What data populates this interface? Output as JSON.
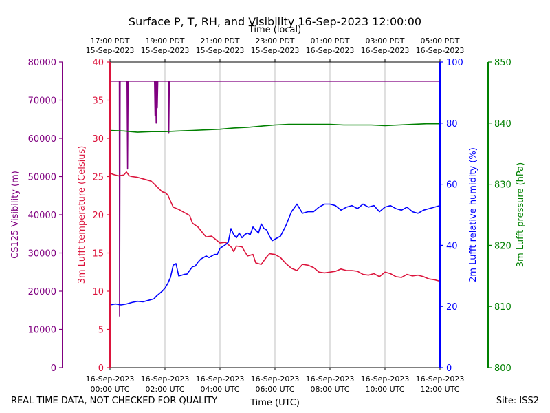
{
  "chart_data": {
    "type": "line",
    "title": "Surface P, T, RH, and Visibility 16-Sep-2023 12:00:00",
    "xlabel": "Time (UTC)",
    "xlabel_top": "Time (local)",
    "x_range": [
      "16-Sep-2023 00:00 UTC",
      "16-Sep-2023 12:00 UTC"
    ],
    "x_ticks_bottom": [
      {
        "hour": 0,
        "line1": "16-Sep-2023",
        "line2": "00:00 UTC"
      },
      {
        "hour": 2,
        "line1": "16-Sep-2023",
        "line2": "02:00 UTC"
      },
      {
        "hour": 4,
        "line1": "16-Sep-2023",
        "line2": "04:00 UTC"
      },
      {
        "hour": 6,
        "line1": "16-Sep-2023",
        "line2": "06:00 UTC"
      },
      {
        "hour": 8,
        "line1": "16-Sep-2023",
        "line2": "08:00 UTC"
      },
      {
        "hour": 10,
        "line1": "16-Sep-2023",
        "line2": "10:00 UTC"
      },
      {
        "hour": 12,
        "line1": "16-Sep-2023",
        "line2": "12:00 UTC"
      }
    ],
    "x_ticks_top": [
      {
        "hour": 0,
        "line1": "17:00 PDT",
        "line2": "15-Sep-2023"
      },
      {
        "hour": 2,
        "line1": "19:00 PDT",
        "line2": "15-Sep-2023"
      },
      {
        "hour": 4,
        "line1": "21:00 PDT",
        "line2": "15-Sep-2023"
      },
      {
        "hour": 6,
        "line1": "23:00 PDT",
        "line2": "15-Sep-2023"
      },
      {
        "hour": 8,
        "line1": "01:00 PDT",
        "line2": "16-Sep-2023"
      },
      {
        "hour": 10,
        "line1": "03:00 PDT",
        "line2": "16-Sep-2023"
      },
      {
        "hour": 12,
        "line1": "05:00 PDT",
        "line2": "16-Sep-2023"
      }
    ],
    "grid": "vertical",
    "axes": {
      "visibility": {
        "label": "CS125 Visibility (m)",
        "color": "#800080",
        "ylim": [
          0,
          80000
        ],
        "ticks": [
          0,
          10000,
          20000,
          30000,
          40000,
          50000,
          60000,
          70000,
          80000
        ]
      },
      "temperature": {
        "label": "3m Lufft temperature (Celsius)",
        "color": "#dc143c",
        "ylim": [
          0,
          40
        ],
        "ticks": [
          0,
          5,
          10,
          15,
          20,
          25,
          30,
          35,
          40
        ]
      },
      "humidity": {
        "label": "2m Lufft relative humidity (%)",
        "color": "#0000ff",
        "ylim": [
          0,
          100
        ],
        "ticks": [
          0,
          20,
          40,
          60,
          80,
          100
        ]
      },
      "pressure": {
        "label": "3m Lufft pressure (hPa)",
        "color": "#008000",
        "ylim": [
          800,
          850
        ],
        "ticks": [
          800,
          810,
          820,
          830,
          840,
          850
        ]
      }
    },
    "series": [
      {
        "key": "visibility",
        "x": [
          0,
          0.34,
          0.35,
          0.37,
          0.62,
          0.64,
          0.66,
          1.62,
          1.64,
          1.66,
          1.68,
          1.7,
          1.72,
          1.74,
          1.76,
          2.12,
          2.14,
          2.16,
          12
        ],
        "values": [
          75000,
          75000,
          13500,
          75000,
          75000,
          52000,
          75000,
          75000,
          66000,
          75000,
          64000,
          75000,
          68000,
          75000,
          75000,
          75000,
          61500,
          75000,
          75000
        ]
      },
      {
        "key": "temperature",
        "x": [
          0,
          0.1,
          0.3,
          0.5,
          0.6,
          0.7,
          0.8,
          1.0,
          1.2,
          1.5,
          1.7,
          1.9,
          2.0,
          2.1,
          2.3,
          2.5,
          2.7,
          2.9,
          3.0,
          3.2,
          3.4,
          3.5,
          3.7,
          3.9,
          4.0,
          4.2,
          4.4,
          4.5,
          4.6,
          4.8,
          5.0,
          5.2,
          5.3,
          5.5,
          5.7,
          5.8,
          6.0,
          6.2,
          6.4,
          6.6,
          6.8,
          7.0,
          7.2,
          7.4,
          7.6,
          7.8,
          8.0,
          8.2,
          8.4,
          8.6,
          8.8,
          9.0,
          9.2,
          9.4,
          9.6,
          9.8,
          10.0,
          10.2,
          10.4,
          10.6,
          10.8,
          11.0,
          11.2,
          11.4,
          11.6,
          11.8,
          12.0
        ],
        "values": [
          25.5,
          25.3,
          25.1,
          25.2,
          25.6,
          25.1,
          25.0,
          24.9,
          24.7,
          24.4,
          23.7,
          23.0,
          22.9,
          22.6,
          21.0,
          20.7,
          20.3,
          19.9,
          18.9,
          18.4,
          17.5,
          17.1,
          17.2,
          16.6,
          16.3,
          16.4,
          15.8,
          15.2,
          15.9,
          15.8,
          14.6,
          14.8,
          13.7,
          13.5,
          14.5,
          14.9,
          14.8,
          14.4,
          13.6,
          13.0,
          12.7,
          13.5,
          13.4,
          13.1,
          12.5,
          12.4,
          12.5,
          12.6,
          12.9,
          12.7,
          12.7,
          12.6,
          12.2,
          12.1,
          12.3,
          11.9,
          12.5,
          12.3,
          11.9,
          11.8,
          12.2,
          12.0,
          12.1,
          11.9,
          11.6,
          11.5,
          11.3
        ]
      },
      {
        "key": "humidity",
        "x": [
          0,
          0.2,
          0.4,
          0.6,
          0.8,
          1.0,
          1.2,
          1.4,
          1.6,
          1.7,
          1.9,
          2.0,
          2.1,
          2.2,
          2.3,
          2.4,
          2.5,
          2.6,
          2.7,
          2.8,
          3.0,
          3.1,
          3.2,
          3.3,
          3.4,
          3.5,
          3.6,
          3.7,
          3.8,
          3.9,
          4.0,
          4.2,
          4.3,
          4.4,
          4.5,
          4.6,
          4.7,
          4.8,
          4.9,
          5.0,
          5.1,
          5.2,
          5.3,
          5.4,
          5.5,
          5.6,
          5.7,
          5.8,
          5.9,
          6.0,
          6.2,
          6.4,
          6.6,
          6.8,
          7.0,
          7.2,
          7.4,
          7.6,
          7.8,
          8.0,
          8.2,
          8.4,
          8.6,
          8.8,
          9.0,
          9.2,
          9.4,
          9.6,
          9.8,
          10.0,
          10.2,
          10.4,
          10.6,
          10.8,
          11.0,
          11.2,
          11.4,
          11.6,
          11.8,
          12.0
        ],
        "values": [
          20.5,
          20.8,
          20.5,
          20.8,
          21.3,
          21.7,
          21.5,
          22.0,
          22.5,
          23.5,
          25.0,
          26.0,
          27.5,
          29.5,
          33.5,
          34.0,
          30.0,
          30.2,
          30.5,
          30.6,
          33.0,
          33.2,
          34.5,
          35.5,
          36.0,
          36.5,
          36.0,
          36.5,
          37.0,
          37.0,
          39.0,
          40.2,
          41.0,
          45.5,
          43.5,
          42.5,
          44.0,
          42.5,
          43.5,
          44.0,
          43.5,
          46.0,
          45.0,
          44.0,
          47.0,
          45.5,
          45.0,
          43.0,
          41.5,
          42.0,
          43.0,
          46.5,
          51.0,
          53.5,
          50.5,
          51.0,
          51.0,
          52.5,
          53.5,
          53.5,
          53.0,
          51.5,
          52.5,
          53.0,
          52.0,
          53.5,
          52.5,
          53.0,
          51.0,
          52.5,
          53.0,
          52.0,
          51.5,
          52.5,
          51.0,
          50.5,
          51.5,
          52.0,
          52.5,
          53.0
        ]
      },
      {
        "key": "pressure",
        "x": [
          0,
          0.5,
          1.0,
          1.5,
          2.0,
          2.5,
          3.0,
          3.5,
          4.0,
          4.5,
          5.0,
          5.5,
          6.0,
          6.5,
          7.0,
          7.5,
          8.0,
          8.5,
          9.0,
          9.5,
          10.0,
          10.5,
          11.0,
          11.5,
          12.0
        ],
        "values": [
          838.8,
          838.7,
          838.5,
          838.6,
          838.6,
          838.7,
          838.8,
          838.9,
          839.0,
          839.2,
          839.3,
          839.5,
          839.7,
          839.8,
          839.8,
          839.8,
          839.8,
          839.7,
          839.7,
          839.7,
          839.6,
          839.7,
          839.8,
          839.9,
          839.9
        ]
      }
    ]
  },
  "footer": {
    "left": "REAL TIME DATA, NOT CHECKED FOR QUALITY",
    "right": "Site: ISS2"
  }
}
